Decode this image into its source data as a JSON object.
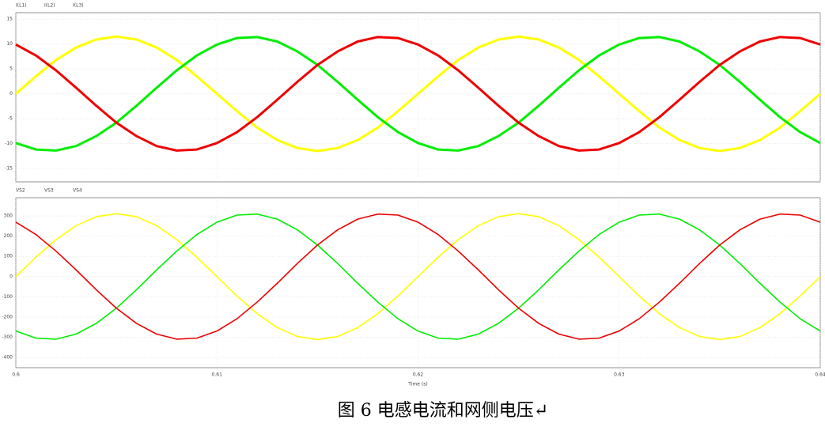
{
  "chart_data": [
    {
      "type": "line",
      "x": [
        0.6,
        0.601,
        0.602,
        0.603,
        0.604,
        0.605,
        0.606,
        0.607,
        0.608,
        0.609,
        0.61,
        0.611,
        0.612,
        0.613,
        0.614,
        0.615,
        0.616,
        0.617,
        0.618,
        0.619,
        0.62,
        0.621,
        0.622,
        0.623,
        0.624,
        0.625,
        0.626,
        0.627,
        0.628,
        0.629,
        0.63,
        0.631,
        0.632,
        0.633,
        0.634,
        0.635,
        0.636,
        0.637,
        0.638,
        0.639,
        0.64
      ],
      "xlim": [
        0.6,
        0.64
      ],
      "ylim": [
        -17.7,
        16.3
      ],
      "yticks": [
        -15,
        -10,
        -5,
        0,
        5,
        10,
        15
      ],
      "grid": true,
      "series": [
        {
          "name": "I(L1)",
          "color": "#ffff00",
          "values": [
            0,
            3.5,
            6.8,
            9.3,
            10.9,
            11.5,
            10.9,
            9.3,
            6.8,
            3.5,
            0,
            -3.5,
            -6.8,
            -9.3,
            -10.9,
            -11.5,
            -10.9,
            -9.3,
            -6.8,
            -3.5,
            0,
            3.5,
            6.8,
            9.3,
            10.9,
            11.5,
            10.9,
            9.3,
            6.8,
            3.5,
            0,
            -3.5,
            -6.8,
            -9.3,
            -10.9,
            -11.5,
            -10.9,
            -9.3,
            -6.8,
            -3.5,
            0
          ]
        },
        {
          "name": "I(L2)",
          "color": "#00ee00",
          "values": [
            -9.9,
            -11.2,
            -11.4,
            -10.5,
            -8.5,
            -5.8,
            -2.4,
            1.2,
            4.7,
            7.7,
            9.9,
            11.2,
            11.4,
            10.5,
            8.5,
            5.8,
            2.4,
            -1.2,
            -4.7,
            -7.7,
            -9.9,
            -11.2,
            -11.4,
            -10.5,
            -8.5,
            -5.8,
            -2.4,
            1.2,
            4.7,
            7.7,
            9.9,
            11.2,
            11.4,
            10.5,
            8.5,
            5.8,
            2.4,
            -1.2,
            -4.7,
            -7.7,
            -9.9
          ]
        },
        {
          "name": "I(L3)",
          "color": "#ee0000",
          "values": [
            9.9,
            7.7,
            4.7,
            1.2,
            -2.4,
            -5.8,
            -8.5,
            -10.5,
            -11.4,
            -11.2,
            -9.9,
            -7.7,
            -4.7,
            -1.2,
            2.4,
            5.8,
            8.5,
            10.5,
            11.4,
            11.2,
            9.9,
            7.7,
            4.7,
            1.2,
            -2.4,
            -5.8,
            -8.5,
            -10.5,
            -11.4,
            -11.2,
            -9.9,
            -7.7,
            -4.7,
            -1.2,
            2.4,
            5.8,
            8.5,
            10.5,
            11.4,
            11.2,
            9.9
          ]
        }
      ]
    },
    {
      "type": "line",
      "x": [
        0.6,
        0.601,
        0.602,
        0.603,
        0.604,
        0.605,
        0.606,
        0.607,
        0.608,
        0.609,
        0.61,
        0.611,
        0.612,
        0.613,
        0.614,
        0.615,
        0.616,
        0.617,
        0.618,
        0.619,
        0.62,
        0.621,
        0.622,
        0.623,
        0.624,
        0.625,
        0.626,
        0.627,
        0.628,
        0.629,
        0.63,
        0.631,
        0.632,
        0.633,
        0.634,
        0.635,
        0.636,
        0.637,
        0.638,
        0.639,
        0.64
      ],
      "xlim": [
        0.6,
        0.64
      ],
      "xticks": [
        0.6,
        0.61,
        0.62,
        0.63,
        0.64
      ],
      "xlabel": "Time (s)",
      "ylim": [
        -450,
        390
      ],
      "yticks": [
        -400,
        -300,
        -200,
        -100,
        0,
        100,
        200,
        300
      ],
      "grid": true,
      "series": [
        {
          "name": "VS2",
          "color": "#ffff00",
          "values": [
            0,
            96,
            183,
            252,
            296,
            311,
            296,
            252,
            183,
            96,
            0,
            -96,
            -183,
            -252,
            -296,
            -311,
            -296,
            -252,
            -183,
            -96,
            0,
            96,
            183,
            252,
            296,
            311,
            296,
            252,
            183,
            96,
            0,
            -96,
            -183,
            -252,
            -296,
            -311,
            -296,
            -252,
            -183,
            -96,
            0
          ]
        },
        {
          "name": "VS3",
          "color": "#00ee00",
          "values": [
            -269,
            -304,
            -309,
            -284,
            -231,
            -156,
            -65,
            33,
            126,
            208,
            269,
            304,
            309,
            284,
            231,
            156,
            65,
            -33,
            -126,
            -208,
            -269,
            -304,
            -309,
            -284,
            -231,
            -156,
            -65,
            33,
            126,
            208,
            269,
            304,
            309,
            284,
            231,
            156,
            65,
            -33,
            -126,
            -208,
            -269
          ]
        },
        {
          "name": "VS4",
          "color": "#ee0000",
          "values": [
            269,
            208,
            126,
            33,
            -65,
            -156,
            -231,
            -284,
            -309,
            -304,
            -269,
            -208,
            -126,
            -33,
            65,
            156,
            231,
            284,
            309,
            304,
            269,
            208,
            126,
            33,
            -65,
            -156,
            -231,
            -284,
            -309,
            -304,
            -269,
            -208,
            -126,
            -33,
            65,
            156,
            231,
            284,
            309,
            304,
            269
          ]
        }
      ]
    }
  ],
  "caption": "图 6  电感电流和网侧电压↵"
}
